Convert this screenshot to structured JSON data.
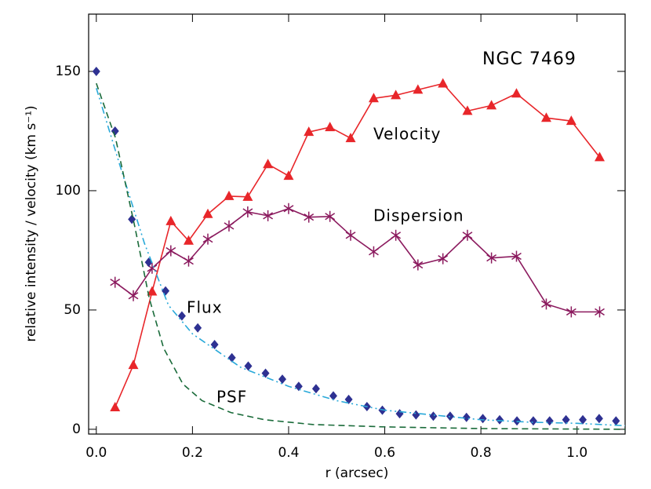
{
  "chart_data": {
    "type": "line",
    "title": "NGC 7469",
    "x_label": "r (arcsec)",
    "y_label": "relative intensity / velocity (km s⁻¹)",
    "xlim": [
      -0.016,
      1.1
    ],
    "ylim": [
      -2,
      174
    ],
    "xticks": [
      {
        "value": 0,
        "label": "0.0"
      },
      {
        "value": 0.2,
        "label": "0.2"
      },
      {
        "value": 0.4,
        "label": "0.4"
      },
      {
        "value": 0.6,
        "label": "0.6"
      },
      {
        "value": 0.8,
        "label": "0.8"
      },
      {
        "value": 1,
        "label": "1.0"
      }
    ],
    "yticks": [
      0,
      50,
      100,
      150
    ],
    "series": [
      {
        "name": "Velocity",
        "color": "#e8262a",
        "marker": "triangle",
        "dash": "solid",
        "x": [
          0.039,
          0.077,
          0.116,
          0.155,
          0.192,
          0.232,
          0.276,
          0.315,
          0.357,
          0.4,
          0.442,
          0.486,
          0.529,
          0.577,
          0.623,
          0.669,
          0.721,
          0.772,
          0.822,
          0.874,
          0.936,
          0.988,
          1.047
        ],
        "values": [
          9.2,
          26.9,
          57.7,
          87.2,
          79,
          90.2,
          97.7,
          97.4,
          111.1,
          106.2,
          124.6,
          126.6,
          122,
          138.7,
          140,
          142.3,
          144.9,
          133.4,
          135.7,
          140.7,
          130.5,
          129.2,
          114
        ]
      },
      {
        "name": "Dispersion",
        "color": "#8b1a5e",
        "marker": "asterisk",
        "dash": "solid",
        "x": [
          0.039,
          0.077,
          0.116,
          0.155,
          0.192,
          0.232,
          0.276,
          0.315,
          0.357,
          0.4,
          0.442,
          0.486,
          0.529,
          0.577,
          0.623,
          0.669,
          0.721,
          0.772,
          0.822,
          0.874,
          0.936,
          0.988,
          1.047
        ],
        "values": [
          61.6,
          56,
          67.5,
          74.8,
          70.5,
          79.7,
          85.2,
          91.1,
          89.5,
          92.5,
          88.9,
          89.2,
          81.3,
          74.4,
          81.3,
          68.9,
          71.5,
          81.3,
          71.8,
          72.5,
          52.5,
          49.2,
          49.2
        ]
      },
      {
        "name": "Flux",
        "color": "#2e3192",
        "marker": "diamond",
        "dash": "none",
        "x": [
          0,
          0.039,
          0.074,
          0.109,
          0.144,
          0.178,
          0.211,
          0.246,
          0.282,
          0.316,
          0.352,
          0.387,
          0.421,
          0.457,
          0.493,
          0.525,
          0.563,
          0.595,
          0.631,
          0.665,
          0.701,
          0.736,
          0.77,
          0.804,
          0.839,
          0.875,
          0.909,
          0.943,
          0.977,
          1.012,
          1.046,
          1.081
        ],
        "values": [
          150,
          125,
          88,
          70,
          58,
          47.5,
          42.5,
          35.5,
          30,
          26.5,
          23.5,
          21,
          18,
          17,
          14,
          12.5,
          9.5,
          8,
          6.5,
          6,
          5.5,
          5.5,
          5,
          4.5,
          4,
          3.5,
          3.5,
          3.5,
          4,
          4,
          4.5,
          3.5
        ]
      },
      {
        "color": "#29a9d9",
        "marker": "none",
        "dash": "dashdot",
        "x": [
          0,
          0.05,
          0.1,
          0.15,
          0.2,
          0.3,
          0.4,
          0.5,
          0.6,
          0.7,
          0.8,
          0.9,
          1.0,
          1.1
        ],
        "values": [
          143,
          110,
          78,
          52,
          40,
          26,
          18,
          12,
          8,
          6,
          4,
          3,
          2.5,
          1.5
        ]
      },
      {
        "name": "PSF",
        "color": "#1a6b3a",
        "marker": "none",
        "dash": "dash",
        "x": [
          0,
          0.04,
          0.08,
          0.11,
          0.14,
          0.18,
          0.22,
          0.28,
          0.35,
          0.45,
          0.6,
          0.8,
          1.1
        ],
        "values": [
          145,
          122,
          85,
          55,
          34,
          19,
          12,
          7,
          4,
          2,
          1,
          0.3,
          0
        ]
      }
    ]
  }
}
